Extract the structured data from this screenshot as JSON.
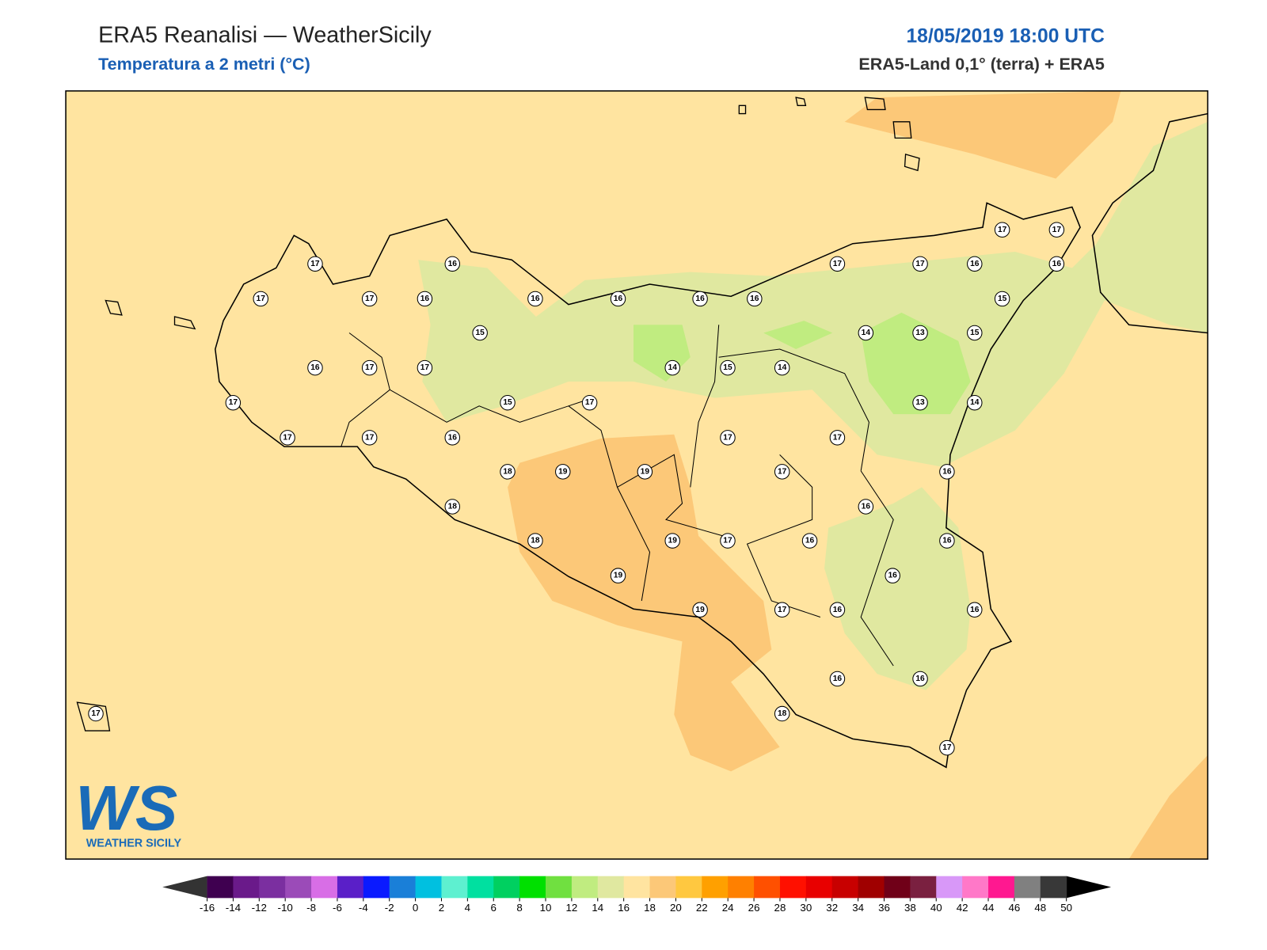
{
  "header": {
    "title": "ERA5 Reanalisi — WeatherSicily",
    "subtitle": "Temperatura a 2 metri (°C)",
    "datetime": "18/05/2019 18:00 UTC",
    "source": "ERA5-Land 0,1° (terra) + ERA5"
  },
  "stations": [
    17,
    17,
    17,
    16,
    16,
    15,
    16,
    16,
    16,
    16,
    17,
    17,
    16,
    17,
    17,
    16,
    15,
    14,
    13,
    15,
    16,
    17,
    17,
    14,
    15,
    14,
    17,
    15,
    17,
    13,
    14,
    17,
    17,
    16,
    17,
    17,
    18,
    19,
    19,
    17,
    16,
    18,
    16,
    18,
    19,
    17,
    16,
    16,
    19,
    16,
    19,
    17,
    16,
    16,
    16,
    16,
    18,
    17,
    17
  ],
  "colorbar": {
    "ticks": [
      -16,
      -14,
      -12,
      -10,
      -8,
      -6,
      -4,
      -2,
      0,
      2,
      4,
      6,
      8,
      10,
      12,
      14,
      16,
      18,
      20,
      22,
      24,
      26,
      28,
      30,
      32,
      34,
      36,
      38,
      40,
      42,
      44,
      46,
      48,
      50
    ],
    "colors": [
      "#3f0050",
      "#6a1a8a",
      "#7b2fa0",
      "#9b4bb8",
      "#d86ee6",
      "#5a1fc8",
      "#0a1aff",
      "#1a7fd8",
      "#00c0e0",
      "#5ef0d0",
      "#00e0a0",
      "#00d060",
      "#00e000",
      "#70e040",
      "#c0ec80",
      "#e0e8a0",
      "#ffe4a0",
      "#fcc878",
      "#ffc840",
      "#ffa000",
      "#ff8000",
      "#ff5000",
      "#ff1000",
      "#e80000",
      "#c80000",
      "#a00000",
      "#700018",
      "#7a2040",
      "#d898f8",
      "#ff78c8",
      "#ff1890",
      "#808080",
      "#383838"
    ],
    "under_color": "#333333",
    "over_color": "#000000"
  },
  "logo": {
    "mark": "WS",
    "name": "WEATHER SICILY"
  }
}
